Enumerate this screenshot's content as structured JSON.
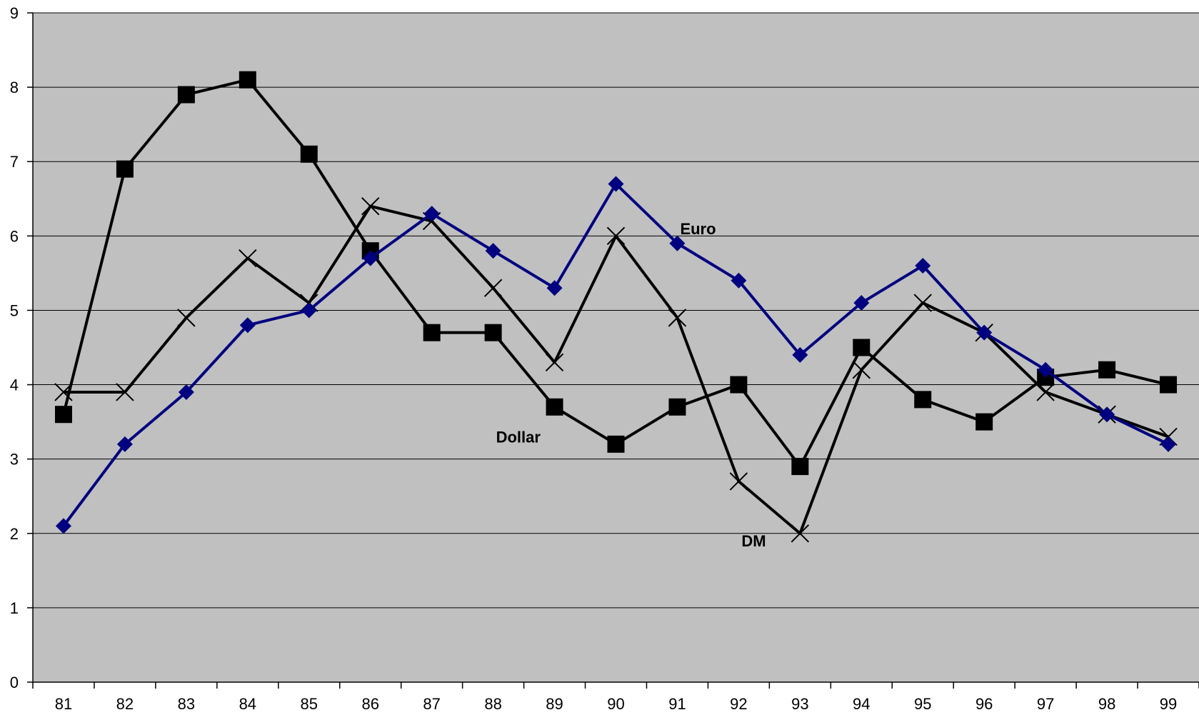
{
  "chart_data": {
    "type": "line",
    "title": "",
    "xlabel": "",
    "ylabel": "",
    "categories": [
      "81",
      "82",
      "83",
      "84",
      "85",
      "86",
      "87",
      "88",
      "89",
      "90",
      "91",
      "92",
      "93",
      "94",
      "95",
      "96",
      "97",
      "98",
      "99"
    ],
    "ylim": [
      0,
      9
    ],
    "yticks": [
      0,
      1,
      2,
      3,
      4,
      5,
      6,
      7,
      8,
      9
    ],
    "grid": true,
    "plot_background": "#c0c0c0",
    "series": [
      {
        "name": "Euro",
        "marker": "diamond",
        "color": "#000080",
        "values": [
          2.1,
          3.2,
          3.9,
          4.8,
          5.0,
          5.7,
          6.3,
          5.8,
          5.3,
          6.7,
          5.9,
          5.4,
          4.4,
          5.1,
          5.6,
          4.7,
          4.2,
          3.6,
          3.2
        ]
      },
      {
        "name": "Dollar",
        "marker": "square",
        "color": "#000000",
        "values": [
          3.6,
          6.9,
          7.9,
          8.1,
          7.1,
          5.8,
          4.7,
          4.7,
          3.7,
          3.2,
          3.7,
          4.0,
          2.9,
          4.5,
          3.8,
          3.5,
          4.1,
          4.2,
          4.0
        ]
      },
      {
        "name": "DM",
        "marker": "x",
        "color": "#000000",
        "values": [
          3.9,
          3.9,
          4.9,
          5.7,
          5.1,
          6.4,
          6.2,
          5.3,
          4.3,
          6.0,
          4.9,
          2.7,
          2.0,
          4.2,
          5.1,
          4.7,
          3.9,
          3.6,
          3.3
        ]
      }
    ],
    "annotations": [
      {
        "text": "Euro",
        "x": "91",
        "y": 6.1
      },
      {
        "text": "Dollar",
        "x": "88",
        "y": 3.3
      },
      {
        "text": "DM",
        "x": "92",
        "y": 1.9
      }
    ]
  }
}
